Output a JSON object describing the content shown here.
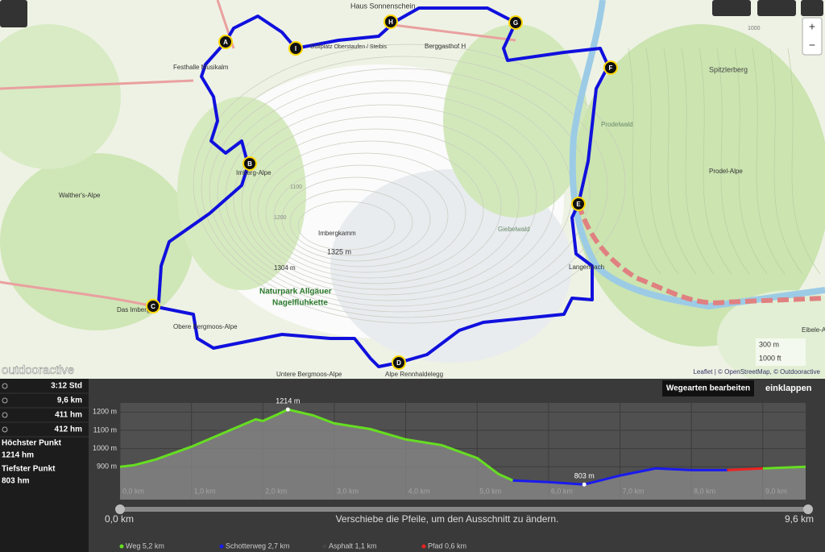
{
  "map": {
    "labels": [
      "Haus Sonnenschein",
      "Golfplatz Oberstaufen / Steibis",
      "Berggasthof H",
      "Festhalle Musikalm",
      "Imberg-Alpe",
      "Walther's-Alpe",
      "Imbergkamm",
      "1325 m",
      "1304 m",
      "Naturpark Allgäuer",
      "Nagelfluhkette",
      "Das Imberg",
      "Obere Bergmoos-Alpe",
      "Untere Bergmoos-Alpe",
      "Alpe Rennhaldelegg",
      "Giebelwald",
      "Spitzlerberg",
      "Prodelwald",
      "Prodel-Alpe",
      "Eibele-Alpe",
      "Langenbach",
      "1100",
      "1200",
      "1000"
    ],
    "waypoints": [
      "A",
      "B",
      "C",
      "D",
      "E",
      "F",
      "G",
      "H",
      "I"
    ],
    "brand": "outdooractive",
    "scale": [
      "300 m",
      "1000 ft"
    ],
    "attribution": "Leaflet | © OpenStreetMap, © Outdooractive",
    "zoom": [
      "+",
      "−"
    ]
  },
  "stats": {
    "rows": [
      "3:12 Std",
      "9,6 km",
      "411 hm",
      "412 hm"
    ],
    "highest": {
      "label": "Höchster Punkt",
      "value": "1214 hm"
    },
    "lowest": {
      "label": "Tiefster Punkt",
      "value": "803 hm"
    }
  },
  "buttons": [
    "Wegearten bearbeiten",
    "einklappen"
  ],
  "slider": {
    "start": "0,0 km",
    "end": "9,6 km",
    "hint": "Verschiebe die Pfeile, um den Ausschnitt zu ändern."
  },
  "chart_data": {
    "type": "area",
    "x": [
      0,
      0.2,
      0.5,
      1.0,
      1.5,
      1.9,
      2.0,
      2.2,
      2.35,
      2.7,
      3.0,
      3.5,
      4.0,
      4.5,
      5.0,
      5.3,
      5.5,
      6.0,
      6.5,
      7.0,
      7.5,
      8.0,
      8.5,
      9.0,
      9.6
    ],
    "series": [
      {
        "name": "Weg 5,2 km",
        "color": "#66dd22",
        "values": [
          900,
          909,
          940,
          1010,
          1094,
          1160,
          1151,
          1186,
          1214,
          1182,
          1138,
          1107,
          1050,
          1019,
          948,
          860,
          825,
          null,
          null,
          null,
          null,
          null,
          null,
          891,
          900
        ]
      },
      {
        "name": "Schotterweg 2,7 km",
        "color": "#1a1aee",
        "values": [
          null,
          null,
          null,
          null,
          null,
          null,
          null,
          null,
          null,
          null,
          null,
          null,
          null,
          null,
          null,
          null,
          825,
          816,
          803,
          852,
          891,
          882,
          882,
          null,
          null
        ]
      },
      {
        "name": "Asphalt 1,1 km",
        "color": "#444444",
        "values": [
          null,
          null,
          null,
          null,
          null,
          null,
          null,
          null,
          null,
          null,
          null,
          null,
          null,
          null,
          null,
          null,
          null,
          null,
          null,
          null,
          null,
          null,
          null,
          null,
          null
        ]
      },
      {
        "name": "Pfad 0,6 km",
        "color": "#ee2222",
        "values": [
          null,
          null,
          null,
          null,
          null,
          null,
          null,
          null,
          null,
          null,
          null,
          null,
          null,
          null,
          null,
          null,
          null,
          null,
          null,
          null,
          null,
          null,
          882,
          891,
          null
        ]
      }
    ],
    "annotations": [
      {
        "x": 2.35,
        "y": 1214,
        "label": "1214 m"
      },
      {
        "x": 6.5,
        "y": 803,
        "label": "803 m"
      }
    ],
    "xlim": [
      0,
      9.6
    ],
    "ylim": [
      720,
      1250
    ],
    "xticks": [
      {
        "value": 0,
        "label": "0,0 km"
      },
      {
        "value": 1,
        "label": "1,0 km"
      },
      {
        "value": 2,
        "label": "2,0 km"
      },
      {
        "value": 3,
        "label": "3,0 km"
      },
      {
        "value": 4,
        "label": "4,0 km"
      },
      {
        "value": 5,
        "label": "5,0 km"
      },
      {
        "value": 6,
        "label": "6,0 km"
      },
      {
        "value": 7,
        "label": "7,0 km"
      },
      {
        "value": 8,
        "label": "8,0 km"
      },
      {
        "value": 9,
        "label": "9,0 km"
      }
    ],
    "yticks": [
      {
        "value": 900,
        "label": "900 m"
      },
      {
        "value": 1000,
        "label": "1000 m"
      },
      {
        "value": 1100,
        "label": "1100 m"
      },
      {
        "value": 1200,
        "label": "1200 m"
      }
    ],
    "grid": true
  }
}
